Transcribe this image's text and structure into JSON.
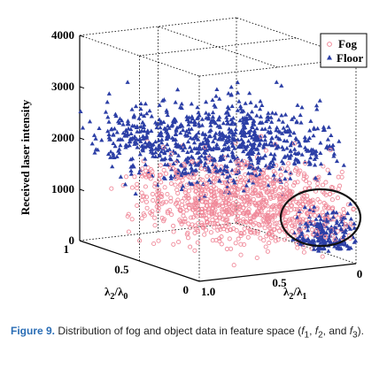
{
  "chart_data": {
    "type": "scatter",
    "title": "",
    "dimensions": 3,
    "axes": {
      "z": {
        "label": "Received laser intensity",
        "range": [
          0,
          4000
        ],
        "ticks": [
          "0",
          "1000",
          "2000",
          "3000",
          "4000"
        ]
      },
      "x": {
        "label": "λ2/λ1",
        "range": [
          1.0,
          0
        ],
        "ticks": [
          "1.0",
          "0.5",
          "0"
        ]
      },
      "y": {
        "label": "λ2/λ0",
        "range": [
          0,
          1
        ],
        "ticks": [
          "0",
          "0.5",
          "1"
        ]
      }
    },
    "legend": {
      "position": "top-right",
      "entries": [
        "Fog",
        "Floor"
      ]
    },
    "series": [
      {
        "name": "Fog",
        "marker": "open-circle",
        "color": "#f08a9a",
        "intensity_range": [
          200,
          2300
        ],
        "approx_center": 1050,
        "points_drawn": 1000
      },
      {
        "name": "Floor",
        "marker": "filled-triangle",
        "color": "#2c3fa6",
        "intensity_range": [
          300,
          3400
        ],
        "approx_center": 2100,
        "points_drawn": 1100
      }
    ],
    "annotations": [
      {
        "type": "ellipse",
        "note": "overlap of fog and floor data near λ2/λ1 = 0"
      }
    ]
  },
  "caption": {
    "label": "Figure 9.",
    "text": " Distribution of fog and object data in feature space (",
    "f1": "f",
    "f1_sub": "1",
    "f2": "f",
    "f2_sub": "2",
    "and": ", and ",
    "f3": "f",
    "f3_sub": "3",
    "end": ")."
  }
}
